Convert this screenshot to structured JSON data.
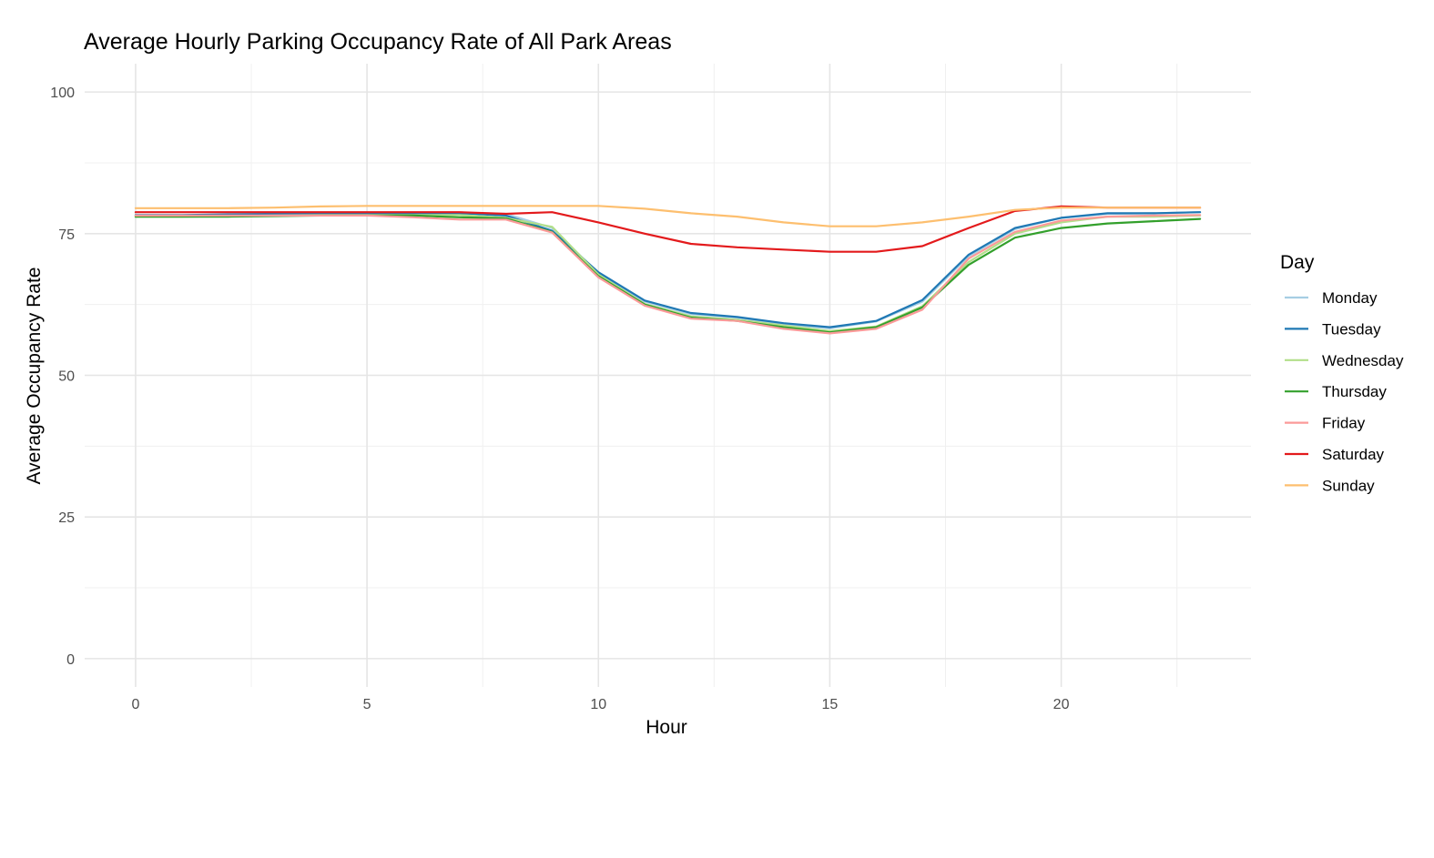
{
  "chart_data": {
    "type": "line",
    "title": "Average Hourly Parking Occupancy Rate of All Park Areas",
    "xlabel": "Hour",
    "ylabel": "Average Occupancy Rate",
    "xlim": [
      -1.1,
      24.1
    ],
    "ylim": [
      -5,
      105
    ],
    "x_ticks": [
      0,
      5,
      10,
      15,
      20
    ],
    "x_tick_labels": [
      "0",
      "5",
      "10",
      "15",
      "20"
    ],
    "y_ticks": [
      0,
      25,
      50,
      75,
      100
    ],
    "y_tick_labels": [
      "0",
      "25",
      "50",
      "75",
      "100"
    ],
    "grid": true,
    "legend": {
      "title": "Day",
      "position": "right"
    },
    "x": [
      0,
      1,
      2,
      3,
      4,
      5,
      6,
      7,
      8,
      9,
      10,
      11,
      12,
      13,
      14,
      15,
      16,
      17,
      18,
      19,
      20,
      21,
      22,
      23
    ],
    "series": [
      {
        "name": "Monday",
        "color": "#a6cee3",
        "values": [
          78.2,
          78.2,
          78.2,
          78.3,
          78.5,
          78.6,
          78.6,
          78.6,
          78.5,
          76.0,
          68.0,
          63.0,
          60.8,
          60.2,
          59.0,
          58.3,
          59.5,
          63.0,
          71.0,
          75.8,
          77.8,
          78.5,
          78.6,
          78.8
        ]
      },
      {
        "name": "Tuesday",
        "color": "#1f78b4",
        "values": [
          78.3,
          78.3,
          78.4,
          78.5,
          78.6,
          78.6,
          78.6,
          78.6,
          78.2,
          75.5,
          68.2,
          63.2,
          61.0,
          60.3,
          59.2,
          58.5,
          59.6,
          63.3,
          71.3,
          76.0,
          77.8,
          78.6,
          78.6,
          78.8
        ]
      },
      {
        "name": "Wednesday",
        "color": "#b2df8a",
        "values": [
          78.0,
          78.0,
          78.1,
          78.2,
          78.3,
          78.3,
          78.3,
          78.3,
          77.8,
          76.2,
          67.8,
          62.6,
          60.4,
          59.8,
          58.8,
          57.8,
          58.6,
          62.2,
          70.0,
          75.0,
          77.0,
          78.0,
          78.0,
          78.2
        ]
      },
      {
        "name": "Thursday",
        "color": "#33a02c",
        "values": [
          78.0,
          78.0,
          78.0,
          78.1,
          78.2,
          78.2,
          78.2,
          77.9,
          77.7,
          75.3,
          67.5,
          62.5,
          60.2,
          59.6,
          58.5,
          57.6,
          58.5,
          62.0,
          69.5,
          74.3,
          76.0,
          76.8,
          77.2,
          77.6
        ]
      },
      {
        "name": "Friday",
        "color": "#fb9a99",
        "values": [
          78.2,
          78.2,
          78.2,
          78.2,
          78.2,
          78.2,
          77.9,
          77.5,
          77.5,
          75.2,
          67.3,
          62.3,
          60.0,
          59.6,
          58.2,
          57.4,
          58.2,
          61.6,
          70.6,
          75.3,
          77.3,
          78.0,
          78.2,
          78.3
        ]
      },
      {
        "name": "Saturday",
        "color": "#e31a1c",
        "values": [
          78.8,
          78.8,
          78.8,
          78.8,
          78.8,
          78.8,
          78.8,
          78.8,
          78.5,
          78.8,
          77.0,
          75.0,
          73.2,
          72.6,
          72.2,
          71.8,
          71.8,
          72.8,
          76.0,
          79.0,
          79.8,
          79.6,
          79.6,
          79.6
        ]
      },
      {
        "name": "Sunday",
        "color": "#fdbf6f",
        "values": [
          79.5,
          79.5,
          79.5,
          79.6,
          79.8,
          79.9,
          79.9,
          79.9,
          79.9,
          79.9,
          79.9,
          79.4,
          78.6,
          78.0,
          77.0,
          76.3,
          76.3,
          77.0,
          78.0,
          79.2,
          79.6,
          79.6,
          79.6,
          79.6
        ]
      }
    ]
  }
}
